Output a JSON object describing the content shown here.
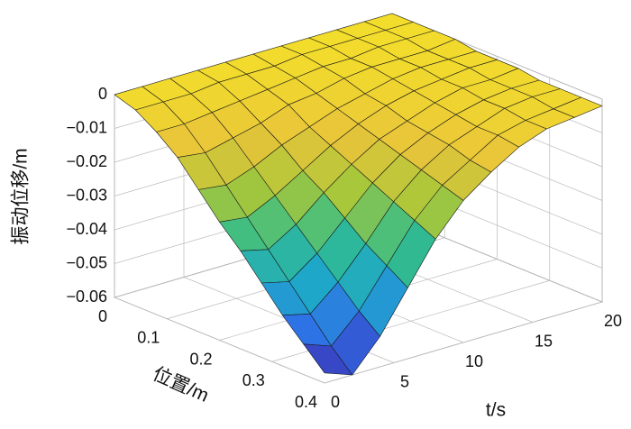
{
  "chart_data": {
    "type": "surface",
    "zlabel": "振动位移/m",
    "xlabel": "位置/m",
    "ylabel": "t/s",
    "x": [
      0,
      0.04,
      0.08,
      0.12,
      0.16,
      0.2,
      0.24,
      0.28,
      0.32,
      0.36,
      0.4
    ],
    "y": [
      0,
      2,
      4,
      6,
      8,
      10,
      12,
      14,
      16,
      18,
      20
    ],
    "z": [
      [
        0,
        0,
        0,
        0,
        0,
        0,
        0,
        0,
        0,
        0,
        0
      ],
      [
        -0.002,
        -0.002,
        -0.002,
        -0.001,
        -0.001,
        -0.001,
        0,
        0,
        0,
        0,
        0
      ],
      [
        -0.006,
        -0.006,
        -0.005,
        -0.004,
        -0.003,
        -0.002,
        -0.001,
        -0.001,
        0,
        0,
        0
      ],
      [
        -0.011,
        -0.012,
        -0.01,
        -0.008,
        -0.005,
        -0.004,
        -0.002,
        -0.001,
        -0.001,
        -0.001,
        0
      ],
      [
        -0.018,
        -0.019,
        -0.016,
        -0.012,
        -0.009,
        -0.006,
        -0.004,
        -0.002,
        -0.001,
        -0.001,
        -0.001
      ],
      [
        -0.025,
        -0.026,
        -0.022,
        -0.017,
        -0.012,
        -0.008,
        -0.005,
        -0.003,
        -0.002,
        -0.001,
        -0.001
      ],
      [
        -0.031,
        -0.033,
        -0.028,
        -0.021,
        -0.015,
        -0.01,
        -0.007,
        -0.004,
        -0.002,
        -0.002,
        -0.001
      ],
      [
        -0.038,
        -0.04,
        -0.034,
        -0.026,
        -0.018,
        -0.012,
        -0.008,
        -0.005,
        -0.003,
        -0.002,
        -0.002
      ],
      [
        -0.045,
        -0.047,
        -0.04,
        -0.031,
        -0.021,
        -0.014,
        -0.009,
        -0.006,
        -0.003,
        -0.002,
        -0.002
      ],
      [
        -0.051,
        -0.054,
        -0.046,
        -0.035,
        -0.024,
        -0.016,
        -0.011,
        -0.006,
        -0.004,
        -0.003,
        -0.002
      ],
      [
        -0.057,
        -0.06,
        -0.051,
        -0.039,
        -0.027,
        -0.018,
        -0.012,
        -0.007,
        -0.004,
        -0.003,
        -0.002
      ]
    ],
    "xlim": [
      0,
      0.4
    ],
    "xticks": [
      0,
      0.1,
      0.2,
      0.3,
      0.4
    ],
    "ylim": [
      0,
      20
    ],
    "yticks": [
      0,
      5,
      10,
      15,
      20
    ],
    "zlim": [
      -0.06,
      0
    ],
    "zticks": [
      0,
      {
        "value": -0.01,
        "label": "−0.01"
      },
      {
        "value": -0.02,
        "label": "−0.02"
      },
      {
        "value": -0.03,
        "label": "−0.03"
      },
      {
        "value": -0.04,
        "label": "−0.04"
      },
      {
        "value": -0.05,
        "label": "−0.05"
      },
      {
        "value": -0.06,
        "label": "−0.06"
      }
    ],
    "grid": true,
    "colormap": [
      "#3e26a8",
      "#2f6fe8",
      "#1fa8c9",
      "#33bd8a",
      "#a9c73a",
      "#e9c43a",
      "#f2dc2c"
    ]
  }
}
